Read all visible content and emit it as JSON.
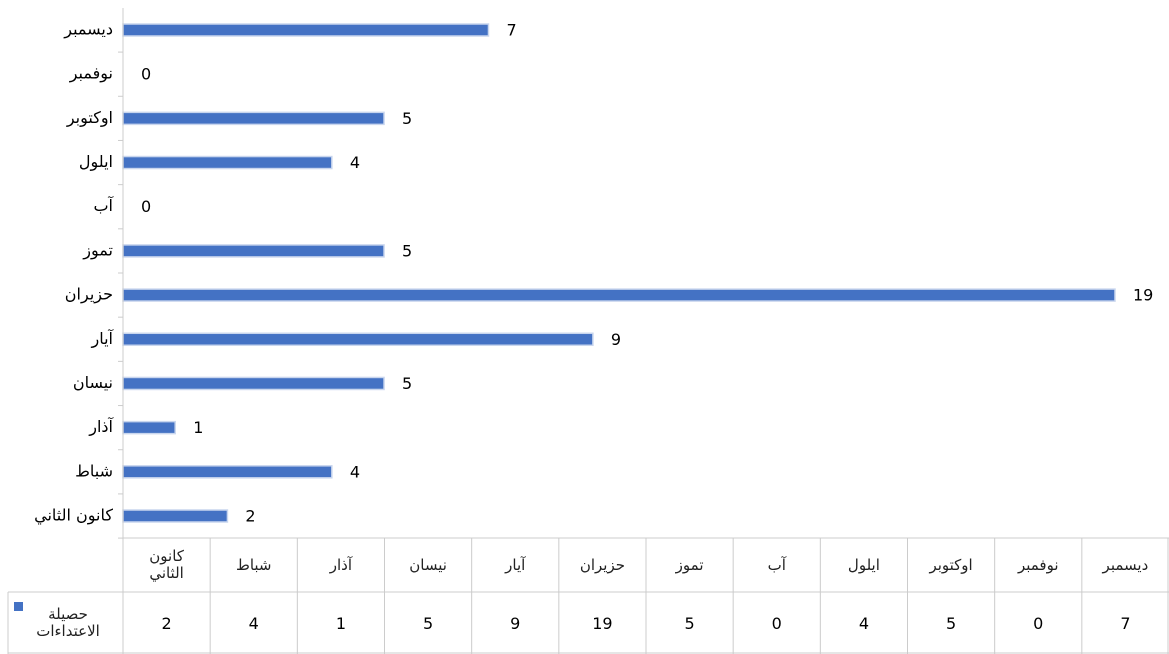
{
  "chart_data": {
    "type": "bar",
    "orientation": "horizontal",
    "categories": [
      "كانون الثاني",
      "شباط",
      "آذار",
      "نيسان",
      "آيار",
      "حزيران",
      "تموز",
      "آب",
      "ايلول",
      "اوكتوبر",
      "نوفمبر",
      "ديسمبر"
    ],
    "series": [
      {
        "name": "حصيلة الاعتداءات",
        "color": "#4472c4",
        "values": [
          2,
          4,
          1,
          5,
          9,
          19,
          5,
          0,
          4,
          5,
          0,
          7
        ]
      }
    ],
    "xlim": [
      0,
      19
    ],
    "data_table": true
  }
}
